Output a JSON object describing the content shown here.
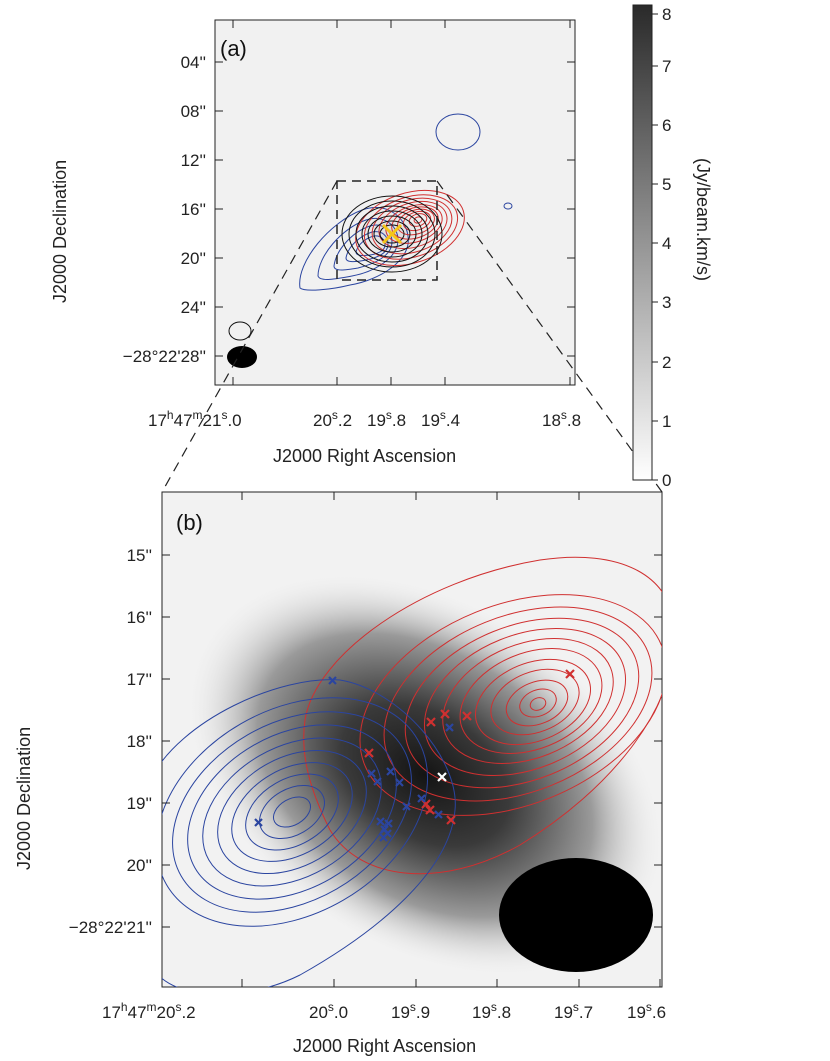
{
  "colorbar": {
    "label": "(Jy/beam.km/s)",
    "ticks": [
      "0",
      "1",
      "2",
      "3",
      "4",
      "5",
      "6",
      "7",
      "8"
    ],
    "range": [
      0,
      8
    ]
  },
  "panel_a": {
    "letter": "(a)",
    "xlabel": "J2000 Right Ascension",
    "ylabel": "J2000 Declination",
    "xticks": [
      {
        "h": "17",
        "hu": "h",
        "m": "47",
        "mu": "m",
        "s": "21",
        "su": "s",
        "f": ".0"
      },
      {
        "s": "20",
        "su": "s",
        "f": ".2"
      },
      {
        "s": "19",
        "su": "s",
        "f": ".8"
      },
      {
        "s": "19",
        "su": "s",
        "f": ".4"
      },
      {
        "s": "18",
        "su": "s",
        "f": ".8"
      }
    ],
    "yticks": [
      "04''",
      "08''",
      "12''",
      "16''",
      "20''",
      "24''",
      "−28°22'28''"
    ],
    "marker": "yellow-cross"
  },
  "panel_b": {
    "letter": "(b)",
    "xlabel": "J2000 Right Ascension",
    "ylabel": "J2000 Declination",
    "xticks": [
      {
        "h": "17",
        "hu": "h",
        "m": "47",
        "mu": "m",
        "s": "20",
        "su": "s",
        "f": ".2"
      },
      {
        "s": "20",
        "su": "s",
        "f": ".0"
      },
      {
        "s": "19",
        "su": "s",
        "f": ".9"
      },
      {
        "s": "19",
        "su": "s",
        "f": ".8"
      },
      {
        "s": "19",
        "su": "s",
        "f": ".7"
      },
      {
        "s": "19",
        "su": "s",
        "f": ".6"
      }
    ],
    "yticks": [
      "15''",
      "16''",
      "17''",
      "18''",
      "19''",
      "20''",
      "−28°22'21''"
    ]
  },
  "colors": {
    "red": "#d03030",
    "blue": "#2b45a0",
    "black": "#111111",
    "yellow": "#f5c518",
    "white_marker": "#ffffff"
  },
  "chart_data": [
    {
      "type": "heatmap",
      "title": "(a)",
      "xlabel": "J2000 Right Ascension",
      "ylabel": "J2000 Declination",
      "colorbar_label": "(Jy/beam.km/s)",
      "colorbar_range": [
        0,
        8
      ],
      "contours": [
        "blue",
        "red",
        "black"
      ]
    },
    {
      "type": "heatmap",
      "title": "(b)",
      "xlabel": "J2000 Right Ascension",
      "ylabel": "J2000 Declination",
      "contours": [
        "blue",
        "red"
      ],
      "markers": {
        "red": 8,
        "blue": 15,
        "white": 1
      }
    }
  ]
}
